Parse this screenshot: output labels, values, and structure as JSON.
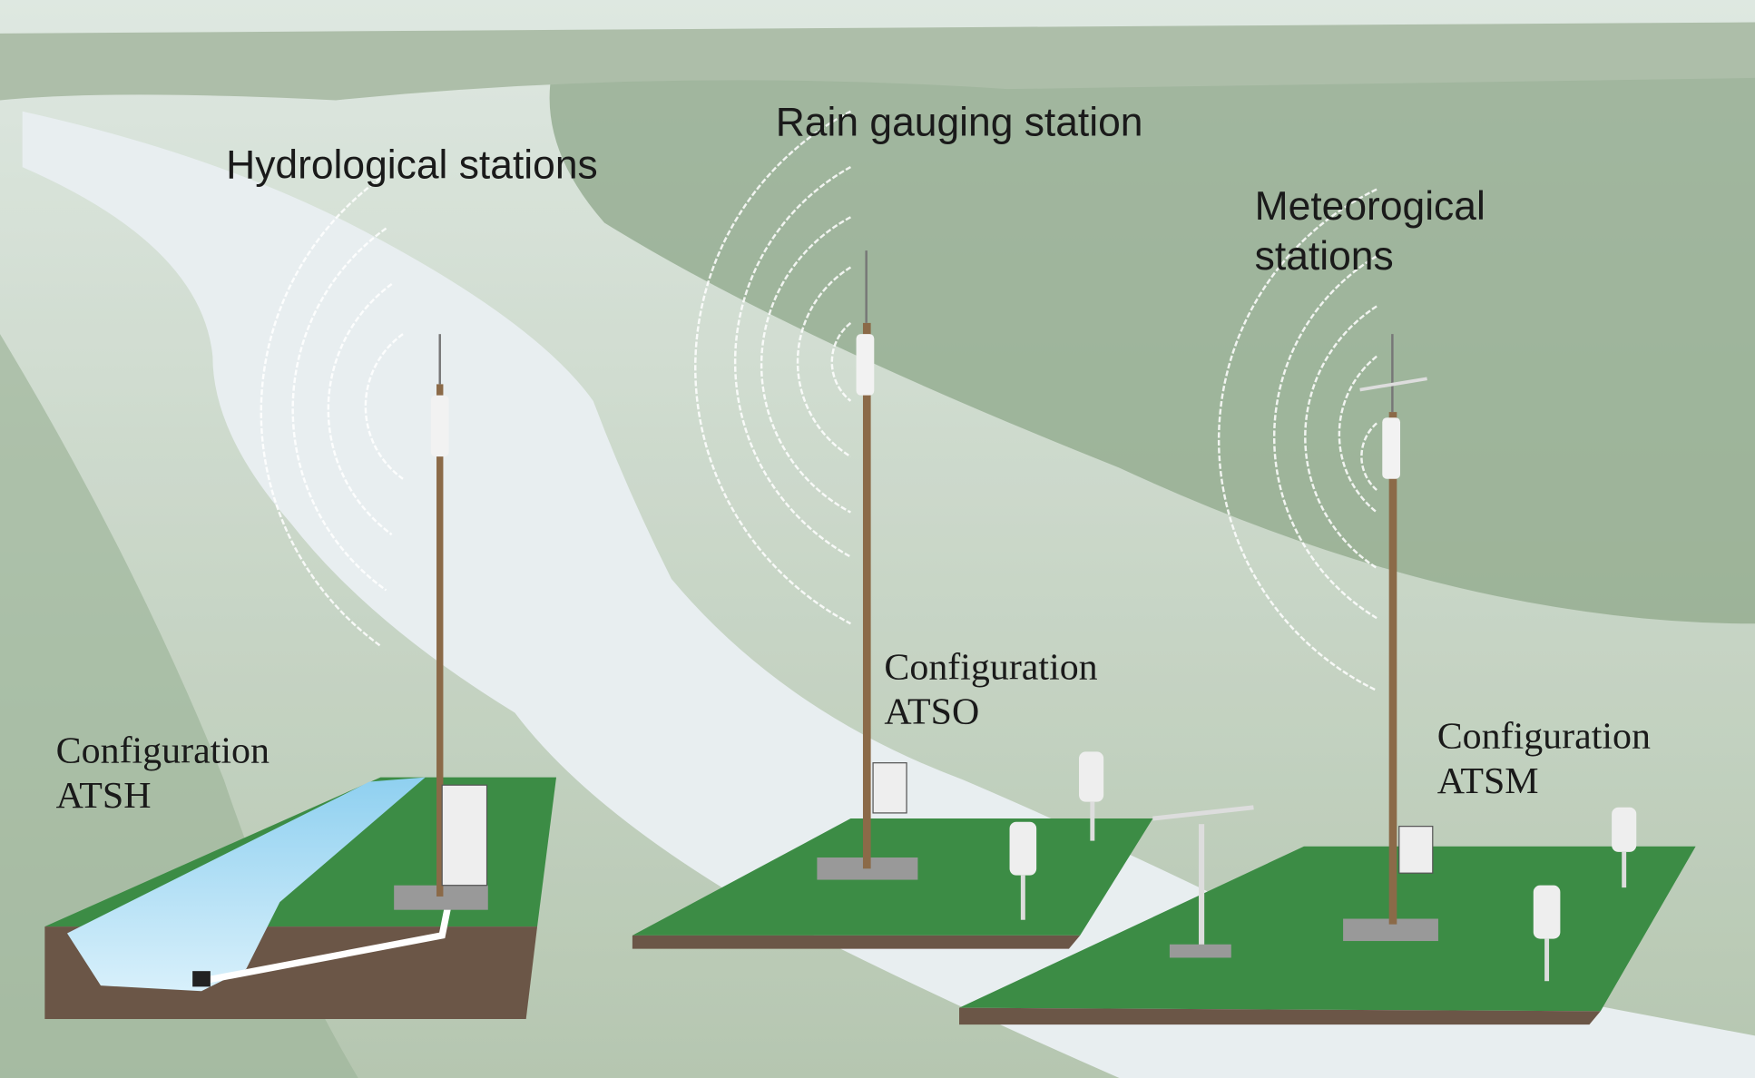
{
  "stations": [
    {
      "name": [
        "Hydrological stations"
      ],
      "configuration": [
        "Configuration",
        "ATSH"
      ]
    },
    {
      "name": [
        "Rain gauging station"
      ],
      "configuration": [
        "Configuration",
        "ATSO"
      ]
    },
    {
      "name": [
        "Meteorogical",
        "stations"
      ],
      "configuration": [
        "Configuration",
        "ATSM"
      ]
    }
  ]
}
